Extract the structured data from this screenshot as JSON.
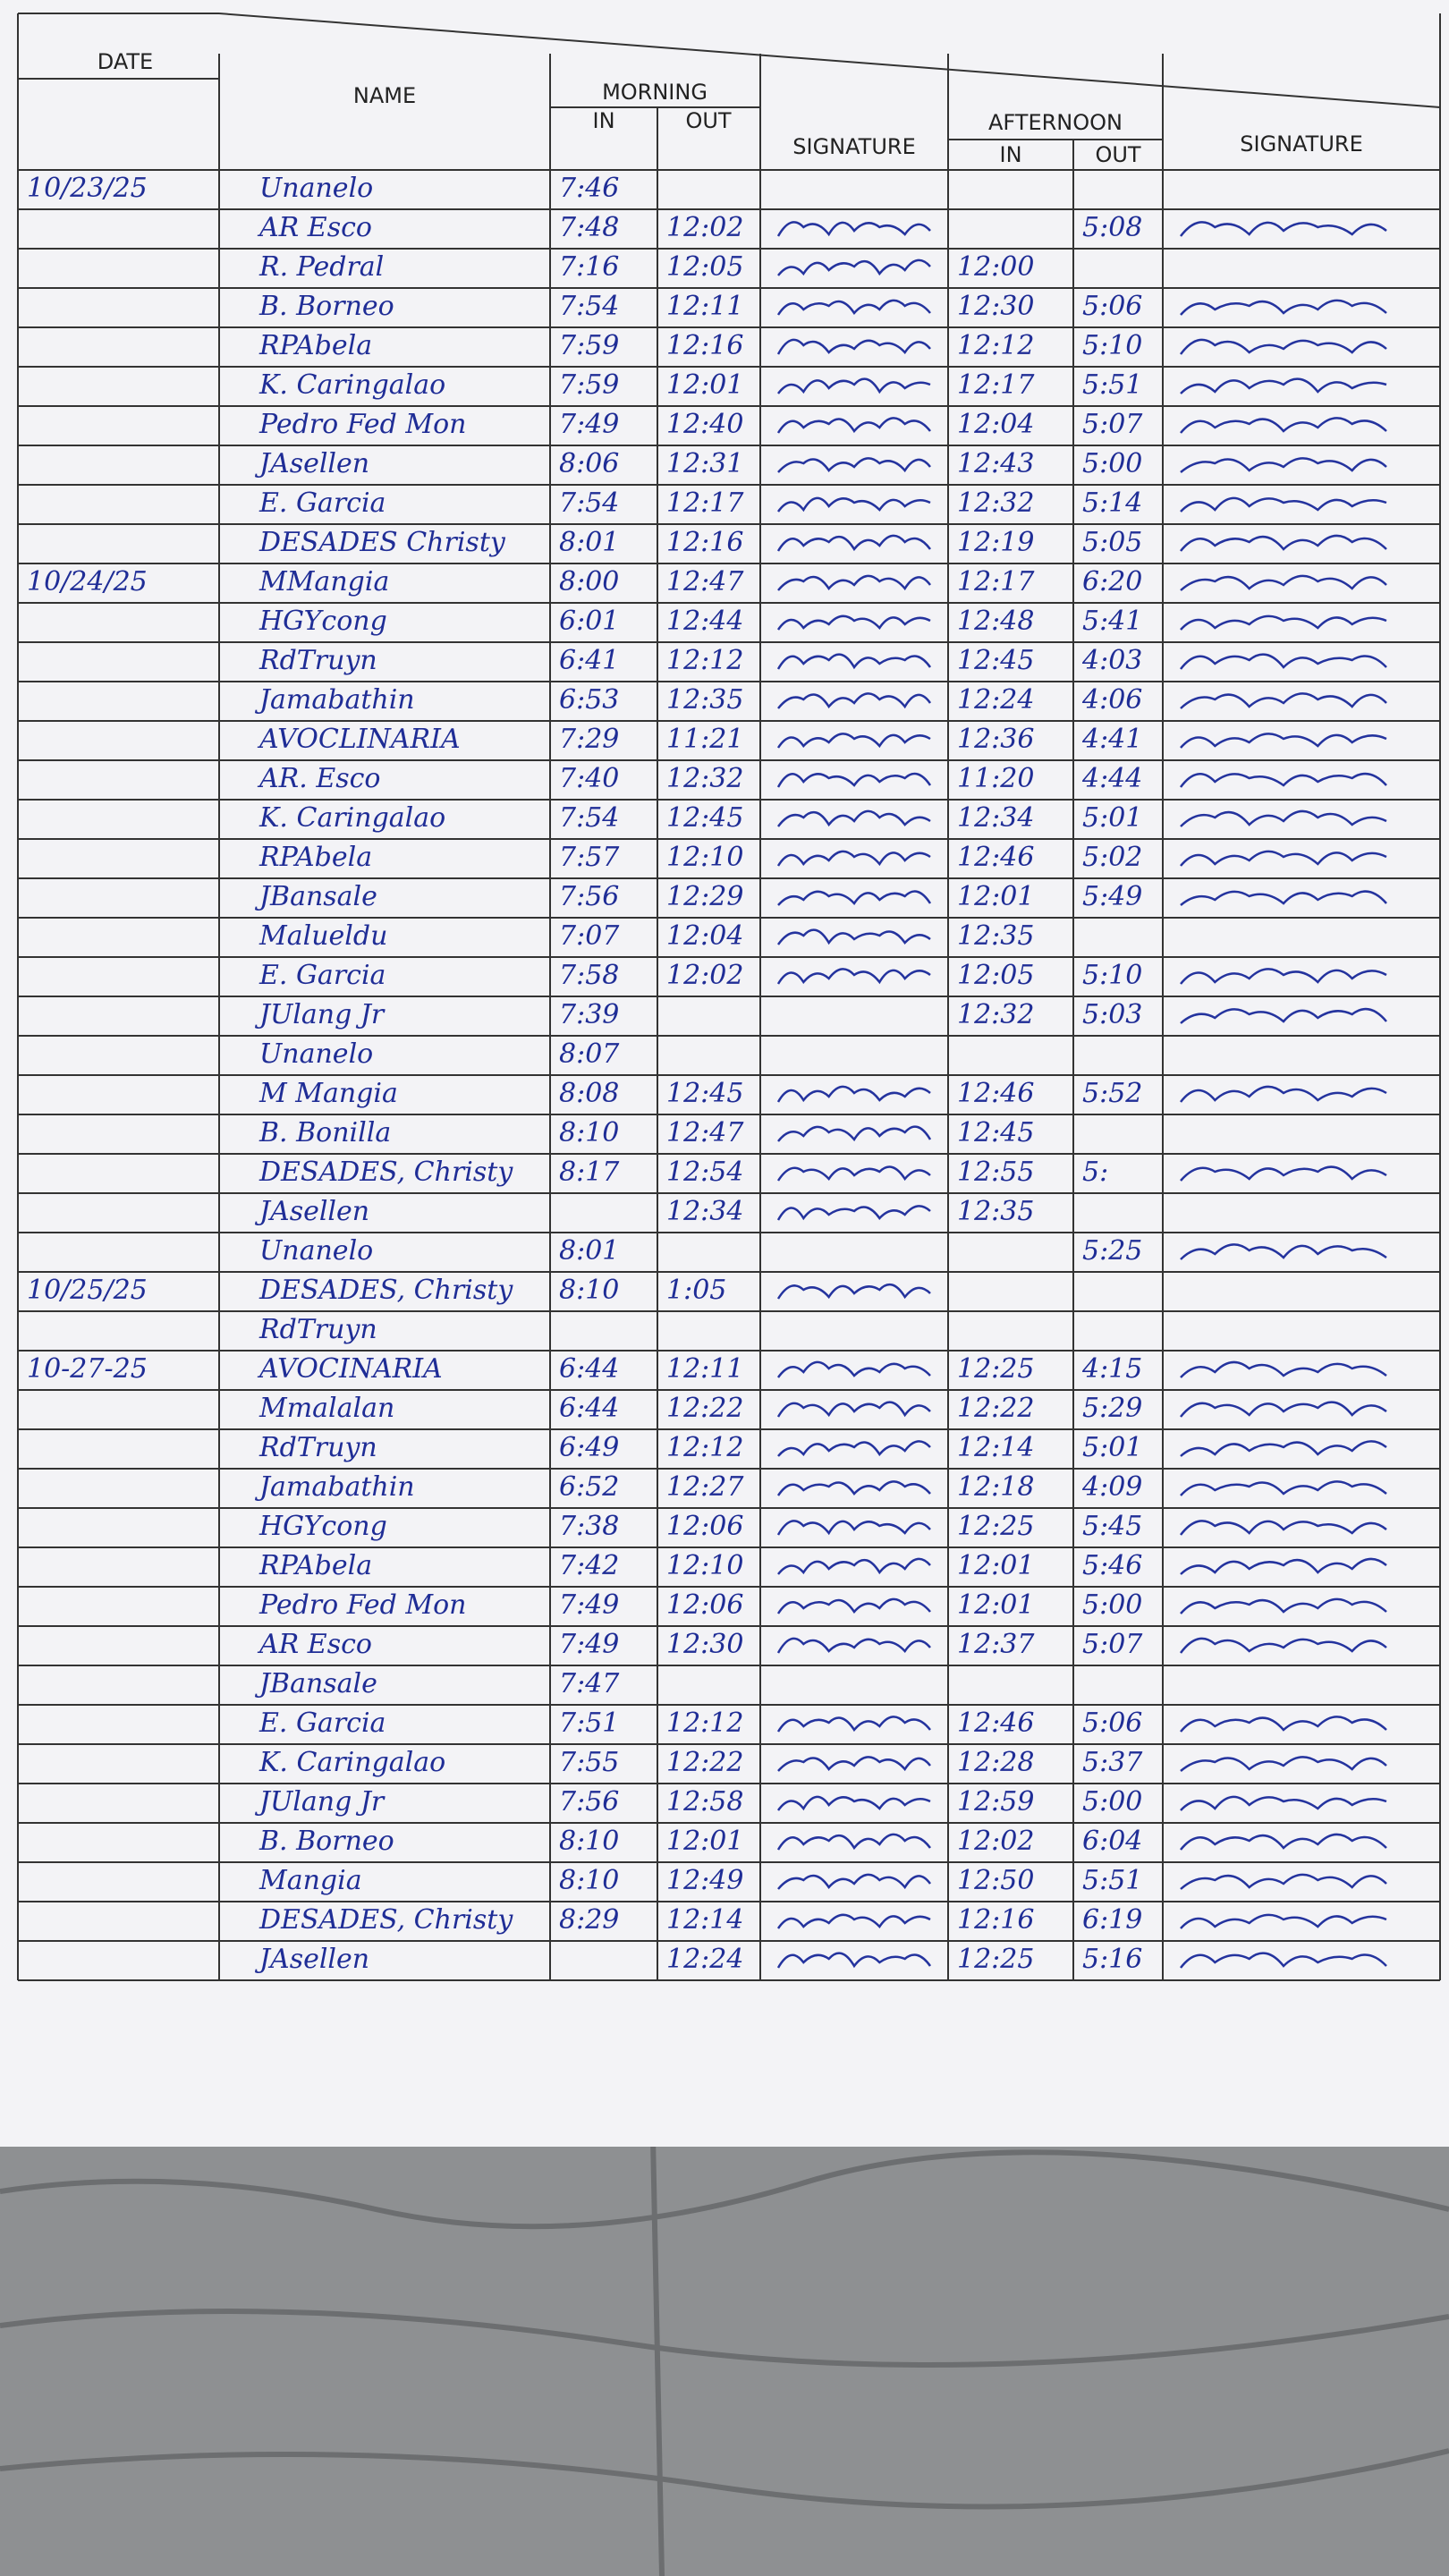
{
  "header": {
    "date": "DATE",
    "name": "NAME",
    "morning": "MORNING",
    "am_in": "IN",
    "am_out": "OUT",
    "am_signature": "SIGNATURE",
    "afternoon": "AFTERNOON",
    "pm_in": "IN",
    "pm_out": "OUT",
    "pm_signature": "SIGNATURE"
  },
  "rows": [
    {
      "date": "10/23/25",
      "name": "Unanelo",
      "am_in": "7:46"
    },
    {
      "name": "AR Esco",
      "am_in": "7:48",
      "am_out": "12:02",
      "pm_out": "5:08"
    },
    {
      "name": "R. Pedral",
      "am_in": "7:16",
      "am_out": "12:05",
      "pm_in": "12:00"
    },
    {
      "name": "B. Borneo",
      "am_in": "7:54",
      "am_out": "12:11",
      "pm_in": "12:30",
      "pm_out": "5:06"
    },
    {
      "name": "RPAbela",
      "am_in": "7:59",
      "am_out": "12:16",
      "pm_in": "12:12",
      "pm_out": "5:10"
    },
    {
      "name": "K. Caringalao",
      "am_in": "7:59",
      "am_out": "12:01",
      "pm_in": "12:17",
      "pm_out": "5:51"
    },
    {
      "name": "Pedro Fed Mon",
      "am_in": "7:49",
      "am_out": "12:40",
      "pm_in": "12:04",
      "pm_out": "5:07"
    },
    {
      "name": "JAsellen",
      "am_in": "8:06",
      "am_out": "12:31",
      "pm_in": "12:43",
      "pm_out": "5:00"
    },
    {
      "name": "E. Garcia",
      "am_in": "7:54",
      "am_out": "12:17",
      "pm_in": "12:32",
      "pm_out": "5:14"
    },
    {
      "name": "DESADES Christy",
      "am_in": "8:01",
      "am_out": "12:16",
      "pm_in": "12:19",
      "pm_out": "5:05"
    },
    {
      "date": "10/24/25",
      "name": "MMangia",
      "am_in": "8:00",
      "am_out": "12:47",
      "pm_in": "12:17",
      "pm_out": "6:20"
    },
    {
      "name": "HGYcong",
      "am_in": "6:01",
      "am_out": "12:44",
      "pm_in": "12:48",
      "pm_out": "5:41"
    },
    {
      "name": "RdTruyn",
      "am_in": "6:41",
      "am_out": "12:12",
      "pm_in": "12:45",
      "pm_out": "4:03"
    },
    {
      "name": "Jamabathin",
      "am_in": "6:53",
      "am_out": "12:35",
      "pm_in": "12:24",
      "pm_out": "4:06"
    },
    {
      "name": "AVOCLINARIA",
      "am_in": "7:29",
      "am_out": "11:21",
      "pm_in": "12:36",
      "pm_out": "4:41"
    },
    {
      "name": "AR. Esco",
      "am_in": "7:40",
      "am_out": "12:32",
      "pm_in": "11:20",
      "pm_out": "4:44"
    },
    {
      "name": "K. Caringalao",
      "am_in": "7:54",
      "am_out": "12:45",
      "pm_in": "12:34",
      "pm_out": "5:01"
    },
    {
      "name": "RPAbela",
      "am_in": "7:57",
      "am_out": "12:10",
      "pm_in": "12:46",
      "pm_out": "5:02"
    },
    {
      "name": "JBansale",
      "am_in": "7:56",
      "am_out": "12:29",
      "pm_in": "12:01",
      "pm_out": "5:49"
    },
    {
      "name": "Malueldu",
      "am_in": "7:07",
      "am_out": "12:04",
      "pm_in": "12:35"
    },
    {
      "name": "E. Garcia",
      "am_in": "7:58",
      "am_out": "12:02",
      "pm_in": "12:05",
      "pm_out": "5:10"
    },
    {
      "name": "JUlang Jr",
      "am_in": "7:39",
      "pm_in": "12:32",
      "pm_out": "5:03"
    },
    {
      "name": "Unanelo",
      "am_in": "8:07"
    },
    {
      "name": "M Mangia",
      "am_in": "8:08",
      "am_out": "12:45",
      "pm_in": "12:46",
      "pm_out": "5:52"
    },
    {
      "name": "B. Bonilla",
      "am_in": "8:10",
      "am_out": "12:47",
      "pm_in": "12:45"
    },
    {
      "name": "DESADES, Christy",
      "am_in": "8:17",
      "am_out": "12:54",
      "pm_in": "12:55",
      "pm_out": "5:"
    },
    {
      "name": "JAsellen",
      "am_out": "12:34",
      "pm_in": "12:35"
    },
    {
      "name": "Unanelo",
      "am_in": "8:01",
      "pm_out": "5:25"
    },
    {
      "date": "10/25/25",
      "name": "DESADES, Christy",
      "am_in": "8:10",
      "am_out": "1:05"
    },
    {
      "name": "RdTruyn"
    },
    {
      "date": "10-27-25",
      "name": "AVOCINARIA",
      "am_in": "6:44",
      "am_out": "12:11",
      "pm_in": "12:25",
      "pm_out": "4:15"
    },
    {
      "name": "Mmalalan",
      "am_in": "6:44",
      "am_out": "12:22",
      "pm_in": "12:22",
      "pm_out": "5:29"
    },
    {
      "name": "RdTruyn",
      "am_in": "6:49",
      "am_out": "12:12",
      "pm_in": "12:14",
      "pm_out": "5:01"
    },
    {
      "name": "Jamabathin",
      "am_in": "6:52",
      "am_out": "12:27",
      "pm_in": "12:18",
      "pm_out": "4:09"
    },
    {
      "name": "HGYcong",
      "am_in": "7:38",
      "am_out": "12:06",
      "pm_in": "12:25",
      "pm_out": "5:45"
    },
    {
      "name": "RPAbela",
      "am_in": "7:42",
      "am_out": "12:10",
      "pm_in": "12:01",
      "pm_out": "5:46"
    },
    {
      "name": "Pedro Fed Mon",
      "am_in": "7:49",
      "am_out": "12:06",
      "pm_in": "12:01",
      "pm_out": "5:00"
    },
    {
      "name": "AR Esco",
      "am_in": "7:49",
      "am_out": "12:30",
      "pm_in": "12:37",
      "pm_out": "5:07"
    },
    {
      "name": "JBansale",
      "am_in": "7:47"
    },
    {
      "name": "E. Garcia",
      "am_in": "7:51",
      "am_out": "12:12",
      "pm_in": "12:46",
      "pm_out": "5:06"
    },
    {
      "name": "K. Caringalao",
      "am_in": "7:55",
      "am_out": "12:22",
      "pm_in": "12:28",
      "pm_out": "5:37"
    },
    {
      "name": "JUlang Jr",
      "am_in": "7:56",
      "am_out": "12:58",
      "pm_in": "12:59",
      "pm_out": "5:00"
    },
    {
      "name": "B. Borneo",
      "am_in": "8:10",
      "am_out": "12:01",
      "pm_in": "12:02",
      "pm_out": "6:04"
    },
    {
      "name": "Mangia",
      "am_in": "8:10",
      "am_out": "12:49",
      "pm_in": "12:50",
      "pm_out": "5:51"
    },
    {
      "name": "DESADES, Christy",
      "am_in": "8:29",
      "am_out": "12:14",
      "pm_in": "12:16",
      "pm_out": "6:19"
    },
    {
      "name": "JAsellen",
      "am_out": "12:24",
      "pm_in": "12:25",
      "pm_out": "5:16"
    }
  ]
}
